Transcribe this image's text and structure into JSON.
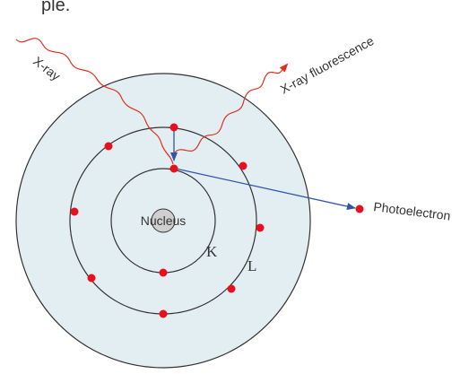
{
  "header": {
    "partial_text": "ple."
  },
  "labels": {
    "xray": "X-ray",
    "fluorescence": "X-ray fluorescence",
    "nucleus": "Nucleus",
    "shell_k": "K",
    "shell_l": "L",
    "photoelectron": "Photoelectron"
  },
  "colors": {
    "outer_atom_fill": "#e3eef2",
    "shell_stroke": "#333333",
    "wave": "#e0301e",
    "arrow": "#2f55a8",
    "electron": "#e8101c",
    "nucleus_fill": "#cfcfcf",
    "text": "#333333"
  },
  "atom": {
    "k_shell_electrons": 2,
    "l_shell_electrons": 8,
    "ejected_electrons": 1
  }
}
